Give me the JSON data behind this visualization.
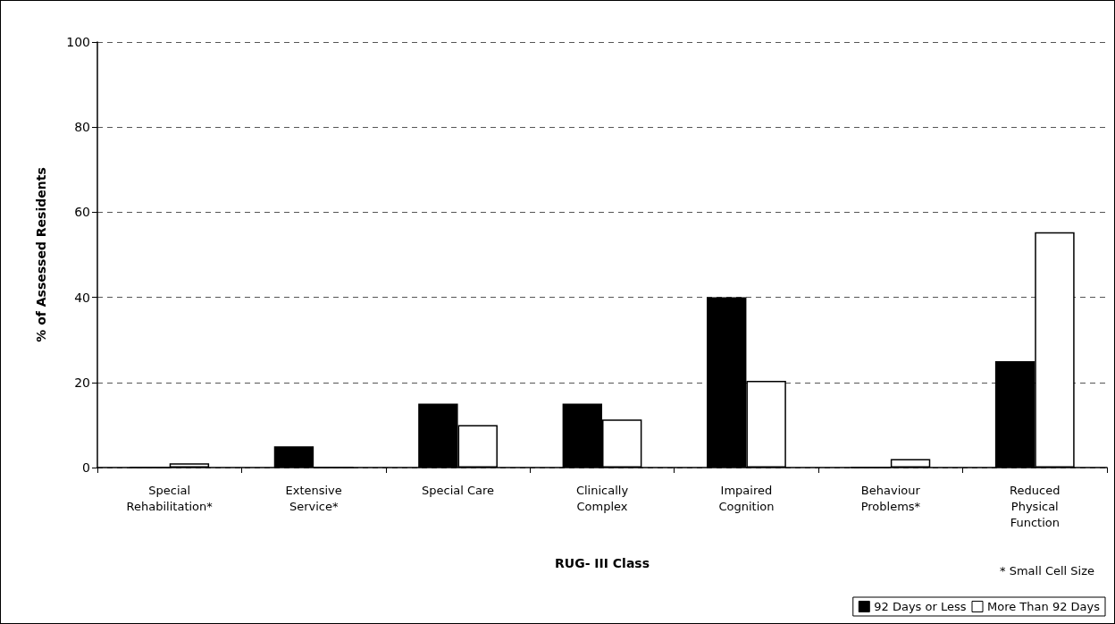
{
  "chart_data": {
    "type": "bar",
    "xlabel": "RUG- III Class",
    "ylabel": "% of Assessed Residents",
    "categories": [
      "Special\nRehabilitation*",
      "Extensive\nService*",
      "Special Care",
      "Clinically\nComplex",
      "Impaired\nCognition",
      "Behaviour\nProblems*",
      "Reduced\nPhysical\nFunction"
    ],
    "series": [
      {
        "name": "92 Days or Less",
        "color": "#000000",
        "values": [
          0,
          5,
          15,
          15,
          40,
          0,
          25
        ]
      },
      {
        "name": "More Than 92 Days",
        "color": "#ffffff",
        "values": [
          1,
          0,
          10,
          11.3,
          20.4,
          2,
          55.3
        ]
      }
    ],
    "ylim": [
      0,
      100
    ],
    "yticks": [
      0,
      20,
      40,
      60,
      80,
      100
    ],
    "grid": "y",
    "legend": "bottom right",
    "annotations": [
      "* Small Cell Size"
    ]
  }
}
